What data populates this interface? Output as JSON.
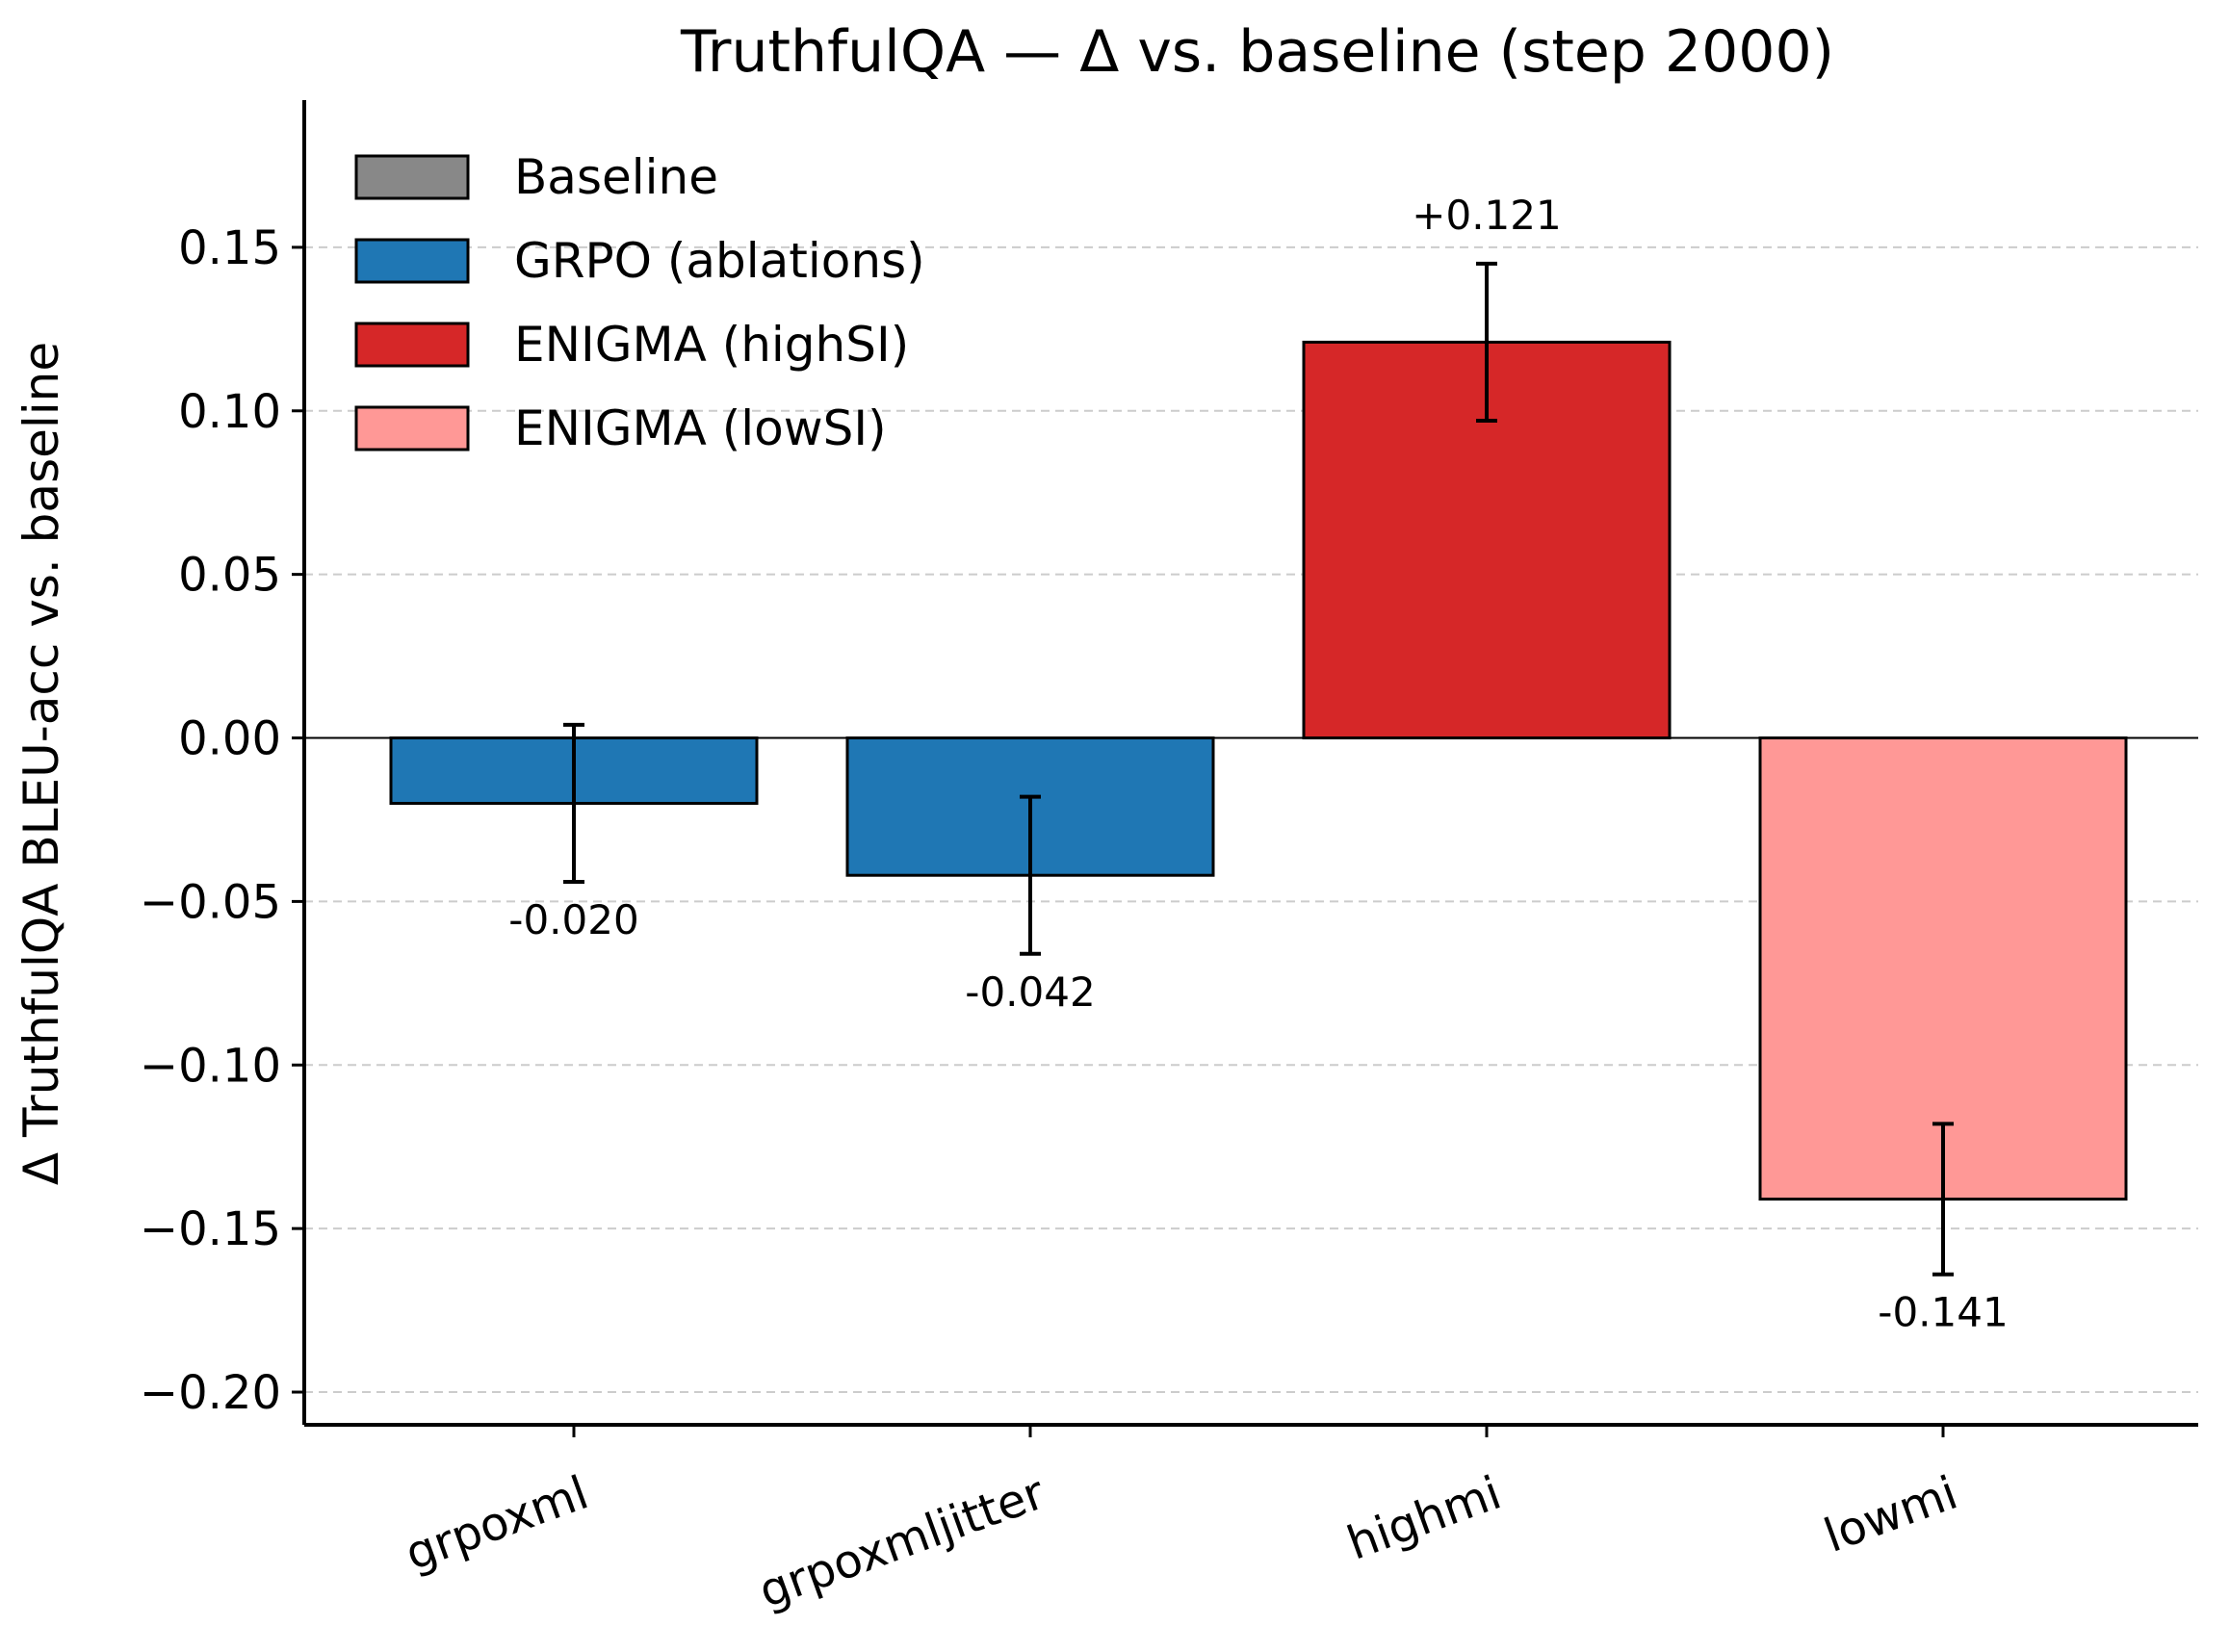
{
  "chart_data": {
    "type": "bar",
    "title": "TruthfulQA — Δ vs. baseline (step 2000)",
    "xlabel": "",
    "ylabel": "Δ TruthfulQA BLEU-acc vs. baseline",
    "ylim": [
      -0.21,
      0.195
    ],
    "yticks": [
      0.15,
      0.1,
      0.05,
      0.0,
      -0.05,
      -0.1,
      -0.15,
      -0.2
    ],
    "ytick_labels": [
      "0.15",
      "0.10",
      "0.05",
      "0.00",
      "−0.05",
      "−0.10",
      "−0.15",
      "−0.20"
    ],
    "grid": "y, dashed",
    "categories": [
      "grpoxml",
      "grpoxmljitter",
      "highmi",
      "lowmi"
    ],
    "values": [
      -0.02,
      -0.042,
      0.121,
      -0.141
    ],
    "errors": [
      0.024,
      0.024,
      0.024,
      0.023
    ],
    "value_labels": [
      "-0.020",
      "-0.042",
      "+0.121",
      "-0.141"
    ],
    "bar_groups": [
      "GRPO (ablations)",
      "GRPO (ablations)",
      "ENIGMA (highSI)",
      "ENIGMA (lowSI)"
    ],
    "legend": {
      "placement": "upper-left",
      "entries": [
        {
          "label": "Baseline",
          "color": "#888888"
        },
        {
          "label": "GRPO (ablations)",
          "color": "#1f77b4"
        },
        {
          "label": "ENIGMA (highSI)",
          "color": "#d62728"
        },
        {
          "label": "ENIGMA (lowSI)",
          "color": "#ff9896"
        }
      ]
    }
  }
}
